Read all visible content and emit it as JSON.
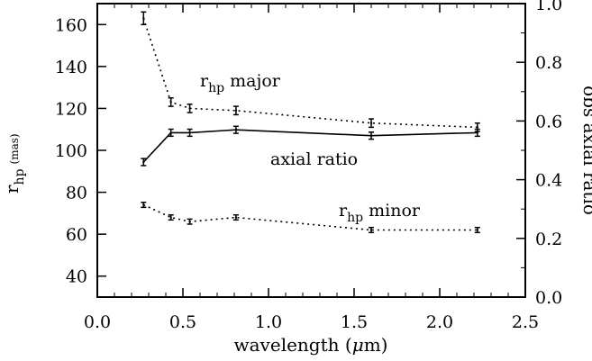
{
  "chart_data": {
    "type": "line",
    "x_axis": {
      "label_main": "wavelength (",
      "label_mu": "μ",
      "label_unit": "m)",
      "range": [
        0.0,
        2.5
      ],
      "ticks": [
        "0.0",
        "0.5",
        "1.0",
        "1.5",
        "2.0",
        "2.5"
      ]
    },
    "y_left": {
      "label_main": "r",
      "label_sub": "hp",
      "label_unit": "(mas)",
      "range": [
        30,
        170
      ],
      "ticks": [
        "40",
        "60",
        "80",
        "100",
        "120",
        "140",
        "160"
      ]
    },
    "y_right": {
      "label": "obs axial ratio",
      "range": [
        0.0,
        1.0
      ],
      "ticks": [
        "0.0",
        "0.2",
        "0.4",
        "0.6",
        "0.8",
        "1.0"
      ]
    },
    "series": [
      {
        "name_main": "r",
        "name_sub": "hp",
        "name_rest": " major",
        "axis": "left",
        "style": "dotted",
        "x": [
          0.27,
          0.43,
          0.54,
          0.81,
          1.6,
          2.22
        ],
        "y": [
          163,
          123,
          120,
          119,
          113,
          111
        ],
        "err": [
          3.0,
          2.0,
          2.0,
          2.0,
          2.0,
          2.0
        ]
      },
      {
        "name_main": "axial ratio",
        "name_sub": "",
        "name_rest": "",
        "axis": "right",
        "style": "solid",
        "x": [
          0.27,
          0.43,
          0.54,
          0.81,
          1.6,
          2.22
        ],
        "y": [
          0.46,
          0.56,
          0.56,
          0.57,
          0.55,
          0.56
        ],
        "err": [
          0.012,
          0.012,
          0.012,
          0.012,
          0.012,
          0.012
        ]
      },
      {
        "name_main": "r",
        "name_sub": "hp",
        "name_rest": " minor",
        "axis": "left",
        "style": "dotted",
        "x": [
          0.27,
          0.43,
          0.54,
          0.81,
          1.6,
          2.22
        ],
        "y": [
          74,
          68,
          66,
          68,
          62,
          62
        ],
        "err": [
          1.2,
          1.2,
          1.2,
          1.2,
          1.2,
          1.2
        ]
      }
    ]
  }
}
